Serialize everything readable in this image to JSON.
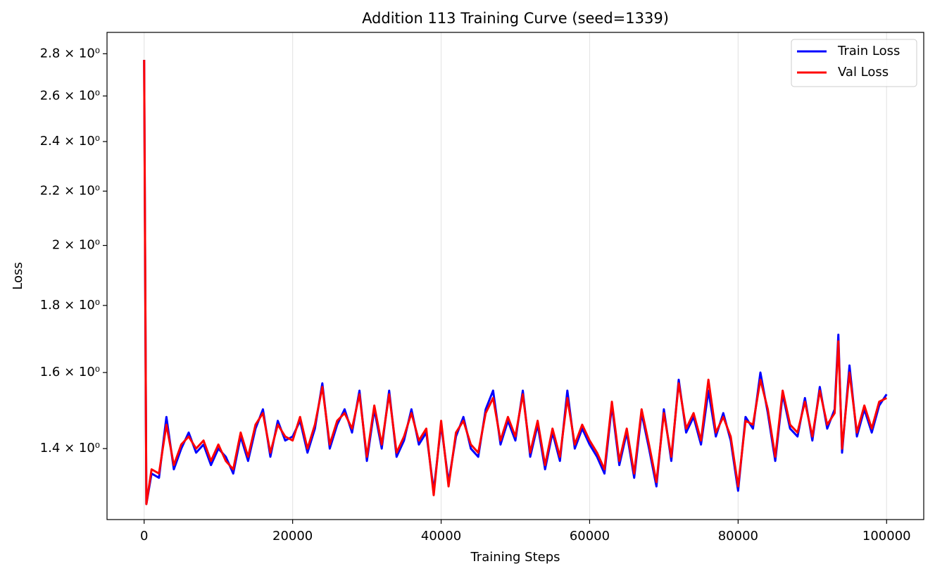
{
  "chart_data": {
    "type": "line",
    "title": "Addition 113 Training Curve (seed=1339)",
    "x_label": "Training Steps",
    "y_label": "Loss",
    "y_scale": "log",
    "grid_x": true,
    "legend": "upper right",
    "xlim": [
      -5000,
      105000
    ],
    "xticks": [
      0,
      20000,
      40000,
      60000,
      80000,
      100000
    ],
    "ylim": [
      1.236,
      2.907
    ],
    "yticks": [
      {
        "value": 1.4,
        "label": "1.4 × 10⁰"
      },
      {
        "value": 1.6,
        "label": "1.6 × 10⁰"
      },
      {
        "value": 1.8,
        "label": "1.8 × 10⁰"
      },
      {
        "value": 2.0,
        "label": "2 × 10⁰"
      },
      {
        "value": 2.2,
        "label": "2.2 × 10⁰"
      },
      {
        "value": 2.4,
        "label": "2.4 × 10⁰"
      },
      {
        "value": 2.6,
        "label": "2.6 × 10⁰"
      },
      {
        "value": 2.8,
        "label": "2.8 × 10⁰"
      }
    ],
    "x": [
      0,
      300,
      1000,
      2000,
      3000,
      4000,
      5000,
      6000,
      7000,
      8000,
      9000,
      10000,
      11000,
      12000,
      13000,
      14000,
      15000,
      16000,
      17000,
      18000,
      19000,
      20000,
      21000,
      22000,
      23000,
      24000,
      25000,
      26000,
      27000,
      28000,
      29000,
      30000,
      31000,
      32000,
      33000,
      34000,
      35000,
      36000,
      37000,
      38000,
      39000,
      40000,
      41000,
      42000,
      43000,
      44000,
      45000,
      46000,
      47000,
      48000,
      49000,
      50000,
      51000,
      52000,
      53000,
      54000,
      55000,
      56000,
      57000,
      58000,
      59000,
      60000,
      61000,
      62000,
      63000,
      64000,
      65000,
      66000,
      67000,
      68000,
      69000,
      70000,
      71000,
      72000,
      73000,
      74000,
      75000,
      76000,
      77000,
      78000,
      79000,
      80000,
      81000,
      82000,
      83000,
      84000,
      85000,
      86000,
      87000,
      88000,
      89000,
      90000,
      91000,
      92000,
      93000,
      93500,
      94000,
      95000,
      96000,
      97000,
      98000,
      99000,
      100000
    ],
    "series": [
      {
        "name": "Train Loss",
        "color": "#0000ff",
        "values": [
          2.77,
          1.27,
          1.34,
          1.33,
          1.48,
          1.35,
          1.4,
          1.44,
          1.39,
          1.41,
          1.36,
          1.4,
          1.38,
          1.34,
          1.43,
          1.37,
          1.45,
          1.5,
          1.38,
          1.47,
          1.42,
          1.43,
          1.47,
          1.39,
          1.45,
          1.57,
          1.4,
          1.46,
          1.5,
          1.44,
          1.55,
          1.37,
          1.5,
          1.4,
          1.55,
          1.38,
          1.42,
          1.5,
          1.41,
          1.44,
          1.3,
          1.46,
          1.32,
          1.43,
          1.48,
          1.4,
          1.38,
          1.5,
          1.55,
          1.41,
          1.47,
          1.42,
          1.55,
          1.38,
          1.46,
          1.35,
          1.44,
          1.37,
          1.55,
          1.4,
          1.45,
          1.41,
          1.38,
          1.34,
          1.51,
          1.36,
          1.44,
          1.33,
          1.49,
          1.4,
          1.31,
          1.5,
          1.37,
          1.58,
          1.44,
          1.48,
          1.41,
          1.55,
          1.43,
          1.49,
          1.42,
          1.3,
          1.48,
          1.45,
          1.6,
          1.49,
          1.37,
          1.54,
          1.45,
          1.43,
          1.53,
          1.42,
          1.56,
          1.45,
          1.5,
          1.71,
          1.39,
          1.62,
          1.43,
          1.5,
          1.44,
          1.51,
          1.54
        ]
      },
      {
        "name": "Val Loss",
        "color": "#ff0000",
        "values": [
          2.77,
          1.27,
          1.35,
          1.34,
          1.46,
          1.36,
          1.41,
          1.43,
          1.4,
          1.42,
          1.37,
          1.41,
          1.37,
          1.35,
          1.44,
          1.38,
          1.46,
          1.49,
          1.39,
          1.46,
          1.43,
          1.42,
          1.48,
          1.4,
          1.46,
          1.56,
          1.41,
          1.47,
          1.49,
          1.45,
          1.54,
          1.38,
          1.51,
          1.41,
          1.54,
          1.39,
          1.43,
          1.49,
          1.42,
          1.45,
          1.29,
          1.47,
          1.31,
          1.44,
          1.47,
          1.41,
          1.39,
          1.49,
          1.53,
          1.42,
          1.48,
          1.43,
          1.54,
          1.39,
          1.47,
          1.36,
          1.45,
          1.38,
          1.53,
          1.41,
          1.46,
          1.42,
          1.39,
          1.35,
          1.52,
          1.37,
          1.45,
          1.34,
          1.5,
          1.41,
          1.32,
          1.49,
          1.38,
          1.57,
          1.45,
          1.49,
          1.42,
          1.58,
          1.44,
          1.48,
          1.43,
          1.31,
          1.47,
          1.46,
          1.58,
          1.5,
          1.38,
          1.55,
          1.46,
          1.44,
          1.52,
          1.43,
          1.55,
          1.46,
          1.49,
          1.69,
          1.4,
          1.6,
          1.44,
          1.51,
          1.45,
          1.52,
          1.53
        ]
      }
    ]
  }
}
